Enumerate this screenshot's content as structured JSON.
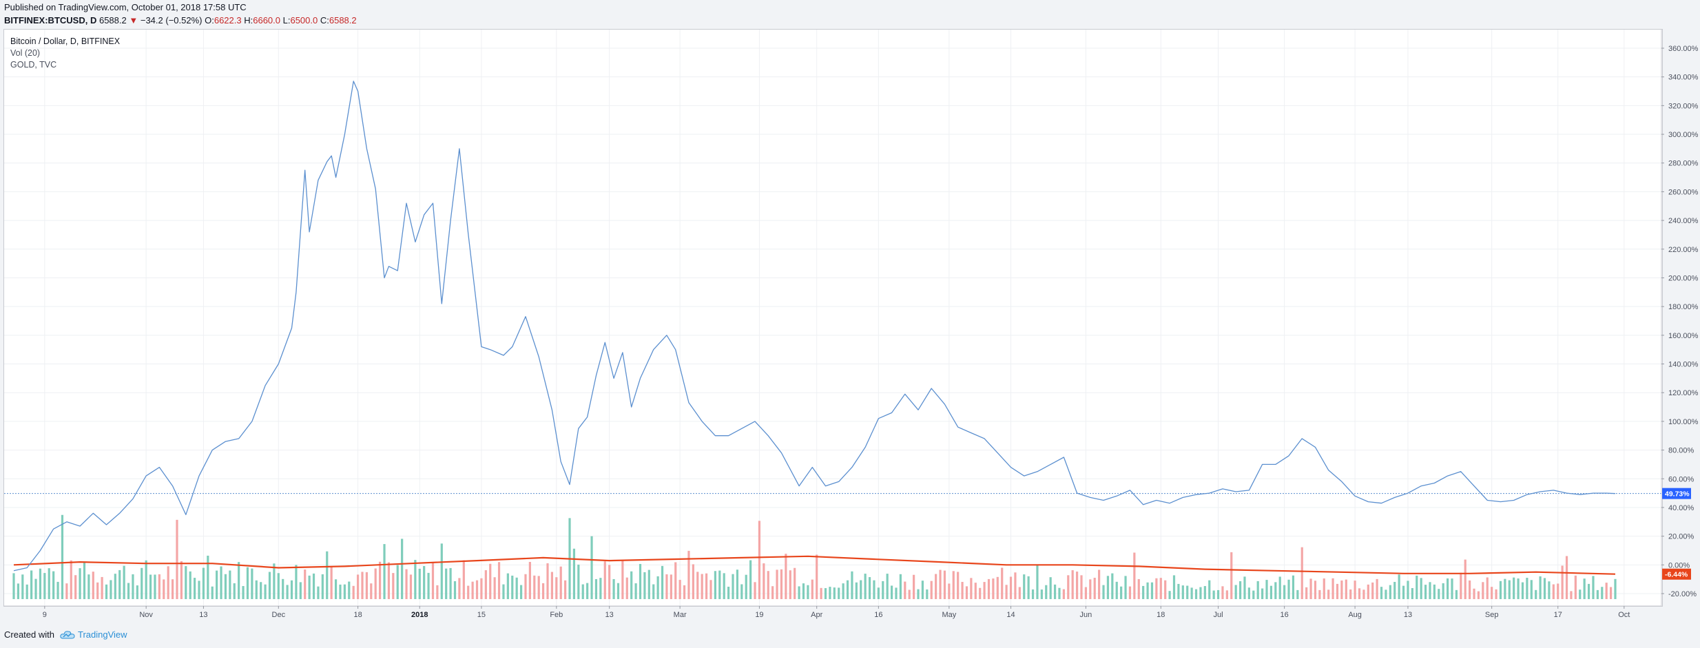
{
  "header": {
    "published": "Published on TradingView.com, October 01, 2018 17:58 UTC",
    "symbol": "BITFINEX:BTCUSD, D",
    "last": "6588.2",
    "change": "−34.2 (−0.52%)",
    "open_label": "O:",
    "open": "6622.3",
    "high_label": "H:",
    "high": "6660.0",
    "low_label": "L:",
    "low": "6500.0",
    "close_label": "C:",
    "close": "6588.2"
  },
  "legend": {
    "main": "Bitcoin / Dollar, D, BITFINEX",
    "volume": "Vol (20)",
    "compare": "GOLD, TVC"
  },
  "footer": {
    "created_with": "Created with",
    "brand": "TradingView"
  },
  "colors": {
    "btc_line": "#5b8fcf",
    "gold_line": "#e8451b",
    "vol_up": "#7fcdbb",
    "vol_down": "#f4a6a6",
    "btc_badge": "#2962ff",
    "gold_badge": "#e8451b"
  },
  "chart_data": {
    "type": "line",
    "title": "Bitcoin / Dollar, D, BITFINEX",
    "y_scale": "percent",
    "ylim": [
      -25,
      365
    ],
    "y_ticks": [
      "360.00%",
      "340.00%",
      "320.00%",
      "300.00%",
      "280.00%",
      "260.00%",
      "240.00%",
      "220.00%",
      "200.00%",
      "180.00%",
      "160.00%",
      "140.00%",
      "120.00%",
      "100.00%",
      "80.00%",
      "60.00%",
      "40.00%",
      "20.00%",
      "0.00%",
      "-20.00%"
    ],
    "x_range_days": [
      0,
      363
    ],
    "x_ticks": [
      {
        "label": "9",
        "day": 7
      },
      {
        "label": "Nov",
        "day": 30
      },
      {
        "label": "13",
        "day": 43
      },
      {
        "label": "Dec",
        "day": 60
      },
      {
        "label": "18",
        "day": 78
      },
      {
        "label": "2018",
        "day": 92
      },
      {
        "label": "15",
        "day": 106
      },
      {
        "label": "Feb",
        "day": 123
      },
      {
        "label": "13",
        "day": 135
      },
      {
        "label": "Mar",
        "day": 151
      },
      {
        "label": "19",
        "day": 169
      },
      {
        "label": "Apr",
        "day": 182
      },
      {
        "label": "16",
        "day": 196
      },
      {
        "label": "May",
        "day": 212
      },
      {
        "label": "14",
        "day": 226
      },
      {
        "label": "Jun",
        "day": 243
      },
      {
        "label": "18",
        "day": 260
      },
      {
        "label": "Jul",
        "day": 273
      },
      {
        "label": "16",
        "day": 288
      },
      {
        "label": "Aug",
        "day": 304
      },
      {
        "label": "13",
        "day": 316
      },
      {
        "label": "Sep",
        "day": 335
      },
      {
        "label": "17",
        "day": 350
      },
      {
        "label": "Oct",
        "day": 365
      }
    ],
    "series": [
      {
        "name": "Bitcoin / Dollar, D, BITFINEX",
        "x": [
          0,
          3,
          6,
          9,
          12,
          15,
          18,
          21,
          24,
          27,
          30,
          33,
          36,
          39,
          42,
          45,
          48,
          51,
          54,
          57,
          60,
          63,
          64,
          66,
          67,
          69,
          71,
          72,
          73,
          75,
          77,
          78,
          80,
          82,
          84,
          85,
          87,
          89,
          91,
          93,
          95,
          97,
          99,
          101,
          103,
          106,
          108,
          111,
          113,
          116,
          119,
          122,
          124,
          126,
          128,
          130,
          132,
          134,
          136,
          138,
          140,
          142,
          145,
          148,
          150,
          153,
          156,
          159,
          162,
          165,
          168,
          171,
          174,
          178,
          181,
          184,
          187,
          190,
          193,
          196,
          199,
          202,
          205,
          208,
          211,
          214,
          217,
          220,
          223,
          226,
          229,
          232,
          235,
          238,
          241,
          244,
          247,
          250,
          253,
          256,
          259,
          262,
          265,
          268,
          271,
          274,
          277,
          280,
          283,
          286,
          289,
          292,
          295,
          298,
          301,
          304,
          307,
          310,
          313,
          316,
          319,
          322,
          325,
          328,
          331,
          334,
          337,
          340,
          343,
          346,
          349,
          352,
          355,
          358,
          361,
          363
        ],
        "values": [
          -4,
          -2,
          10,
          25,
          30,
          27,
          36,
          28,
          36,
          46,
          62,
          68,
          55,
          35,
          62,
          80,
          86,
          88,
          100,
          125,
          140,
          165,
          190,
          275,
          232,
          268,
          281,
          285,
          270,
          300,
          337,
          330,
          290,
          262,
          200,
          208,
          205,
          252,
          225,
          244,
          252,
          182,
          240,
          290,
          231,
          152,
          150,
          146,
          152,
          173,
          145,
          108,
          72,
          56,
          95,
          103,
          132,
          155,
          130,
          148,
          110,
          130,
          150,
          160,
          150,
          113,
          100,
          90,
          90,
          95,
          100,
          90,
          78,
          55,
          68,
          55,
          58,
          68,
          82,
          102,
          106,
          119,
          108,
          123,
          112,
          96,
          92,
          88,
          78,
          68,
          62,
          65,
          70,
          75,
          50,
          47,
          45,
          48,
          52,
          42,
          45,
          43,
          47,
          49,
          50,
          53,
          51,
          52,
          70,
          70,
          76,
          88,
          82,
          66,
          58,
          48,
          44,
          43,
          47,
          50,
          55,
          57,
          62,
          65,
          55,
          45,
          44,
          45,
          49,
          51,
          52,
          50,
          49,
          50,
          50,
          49.73
        ]
      },
      {
        "name": "GOLD, TVC",
        "x": [
          0,
          15,
          30,
          45,
          60,
          75,
          90,
          105,
          120,
          135,
          150,
          165,
          180,
          195,
          210,
          225,
          240,
          255,
          270,
          285,
          300,
          315,
          330,
          345,
          363
        ],
        "values": [
          0,
          2,
          1,
          1,
          -2,
          -1,
          1,
          3,
          5,
          3,
          4,
          5,
          6,
          4,
          2,
          0,
          0,
          -1,
          -3,
          -4,
          -5,
          -6,
          -6,
          -5,
          -6.44
        ]
      }
    ],
    "last_values": {
      "btc": "49.73%",
      "gold": "-6.44%"
    }
  }
}
